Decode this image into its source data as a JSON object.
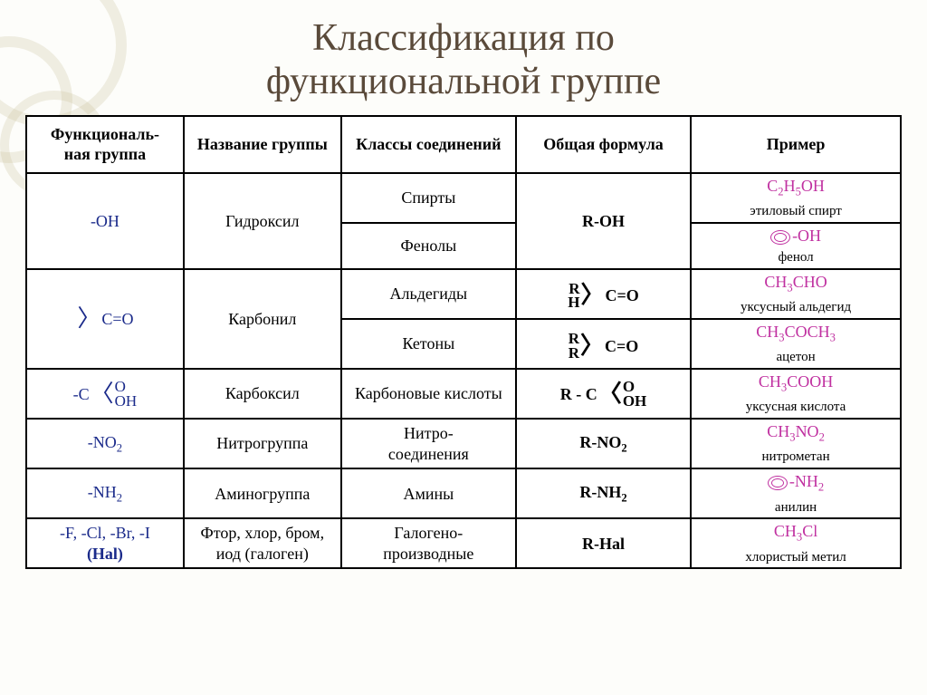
{
  "title_line1": "Классификация по",
  "title_line2": "функциональной группе",
  "colors": {
    "title": "#5a4a3a",
    "functional_group": "#1a2a8a",
    "example_formula": "#c030a0",
    "border": "#000000",
    "background": "#fdfdfa",
    "ring": "rgba(200,190,150,0.25)"
  },
  "headers": {
    "c0": "Функциональ-\nная группа",
    "c1": "Название группы",
    "c2": "Классы соединений",
    "c3": "Общая формула",
    "c4": "Пример"
  },
  "rows": {
    "r0": {
      "fg": "-OH",
      "name": "Гидроксил",
      "class_a": "Спирты",
      "class_b": "Фенолы",
      "formula": "R-OH",
      "example_a_formula": "C₂H₅OH",
      "example_a_name": "этиловый спирт",
      "example_b_suffix": "-OH",
      "example_b_name": "фенол"
    },
    "r1": {
      "fg_post": "C=O",
      "name": "Карбонил",
      "class_a": "Альдегиды",
      "class_b": "Кетоны",
      "formula_a_pre_top": "R",
      "formula_a_pre_bot": "H",
      "formula_a_post": "C=O",
      "formula_b_pre_top": "R",
      "formula_b_pre_bot": "R",
      "formula_b_post": "C=O",
      "example_a_formula": "CH₃CHO",
      "example_a_name": "уксусный альдегид",
      "example_b_formula": "CH₃COCH₃",
      "example_b_name": "ацетон"
    },
    "r2": {
      "fg_pre": "-C",
      "fg_top": "O",
      "fg_bot": "OH",
      "name": "Карбоксил",
      "class": "Карбоновые кислоты",
      "formula_pre": "R - C",
      "formula_top": "O",
      "formula_bot": "OH",
      "example_formula": "CH₃COOH",
      "example_name": "уксусная кислота"
    },
    "r3": {
      "fg": "-NO₂",
      "name": "Нитрогруппа",
      "class": "Нитро-\nсоединения",
      "formula": "R-NO₂",
      "example_formula": "CH₃NO₂",
      "example_name": "нитрометан"
    },
    "r4": {
      "fg": "-NH₂",
      "name": "Аминогруппа",
      "class": "Амины",
      "formula": "R-NH₂",
      "example_suffix": "-NH₂",
      "example_name": "анилин"
    },
    "r5": {
      "fg_line1": "-F, -Cl, -Br, -I",
      "fg_line2": "(Hal)",
      "name": "Фтор, хлор, бром, иод (галоген)",
      "class": "Галогено-\nпроизводные",
      "formula": "R-Hal",
      "example_formula": "CH₃Cl",
      "example_name": "хлористый метил"
    }
  }
}
